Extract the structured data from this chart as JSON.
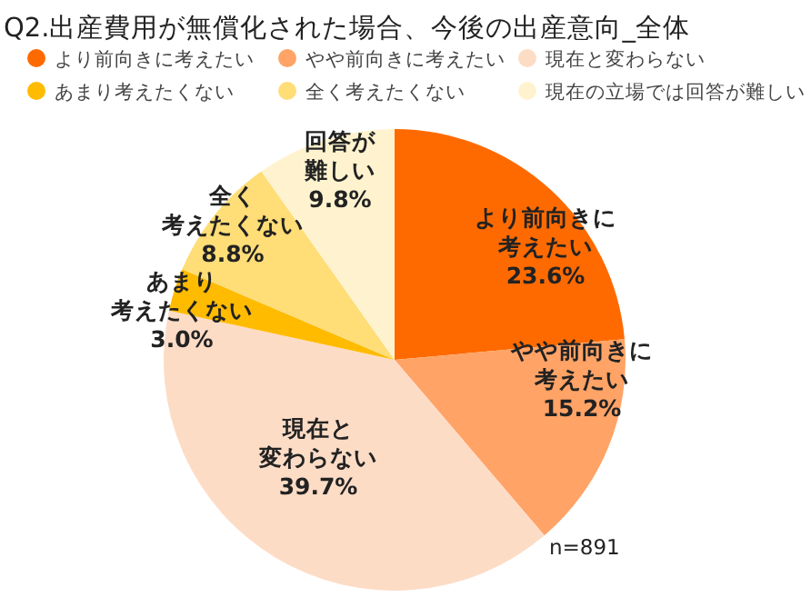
{
  "chart_data": {
    "type": "pie",
    "title": "Q2.出産費用が無償化された場合、今後の出産意向_全体",
    "categories": [
      "より前向きに考えたい",
      "やや前向きに考えたい",
      "現在と変わらない",
      "あまり考えたくない",
      "全く考えたくない",
      "現在の立場では回答が難しい"
    ],
    "values": [
      23.6,
      15.2,
      39.7,
      3.0,
      8.8,
      9.8
    ],
    "colors": [
      "#ff6a00",
      "#ffa366",
      "#fddcc6",
      "#ffbb00",
      "#ffdd77",
      "#fff3cf"
    ],
    "value_labels": [
      "より前向きに考えたい\n23.6%",
      "やや前向きに考えたい\n15.2%",
      "現在と変わらない\n39.7%",
      "あまり考えたくない\n3.0%",
      "全く考えたくない\n8.8%",
      "回答が難しい\n9.8%"
    ],
    "legend": "top",
    "annotations": [
      "n=891"
    ]
  }
}
